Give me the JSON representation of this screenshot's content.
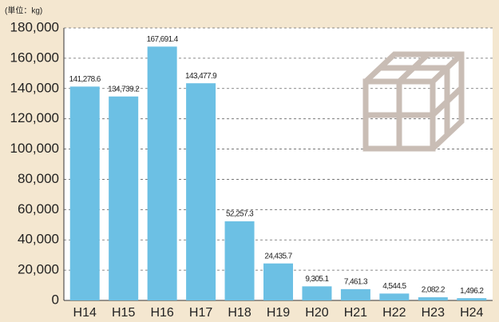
{
  "chart_data": {
    "type": "bar",
    "y_axis_label": "(単位：kg)",
    "categories": [
      "H14",
      "H15",
      "H16",
      "H17",
      "H18",
      "H19",
      "H20",
      "H21",
      "H22",
      "H23",
      "H24"
    ],
    "values": [
      141278.6,
      134739.2,
      167691.4,
      143477.9,
      52257.3,
      24435.7,
      9305.1,
      7461.3,
      4544.5,
      2082.2,
      1496.2
    ],
    "value_labels": [
      "141,278.6",
      "134,739.2",
      "167,691.4",
      "143,477.9",
      "52,257.3",
      "24,435.7",
      "9,305.1",
      "7,461.3",
      "4,544.5",
      "2,082.2",
      "1,496.2"
    ],
    "color": "#6cc0e4",
    "ylim": [
      0,
      180000
    ],
    "yticks": [
      0,
      {
        "value": 20000,
        "label": "20,000"
      },
      {
        "value": 40000,
        "label": "40,000"
      },
      {
        "value": 60000,
        "label": "60,000"
      },
      {
        "value": 80000,
        "label": "80,000"
      },
      {
        "value": 100000,
        "label": "100,000"
      },
      {
        "value": 120000,
        "label": "120,000"
      },
      {
        "value": 140000,
        "label": "140,000"
      },
      {
        "value": 160000,
        "label": "160,000"
      },
      {
        "value": 180000,
        "label": "180,000"
      }
    ],
    "grid": true
  }
}
